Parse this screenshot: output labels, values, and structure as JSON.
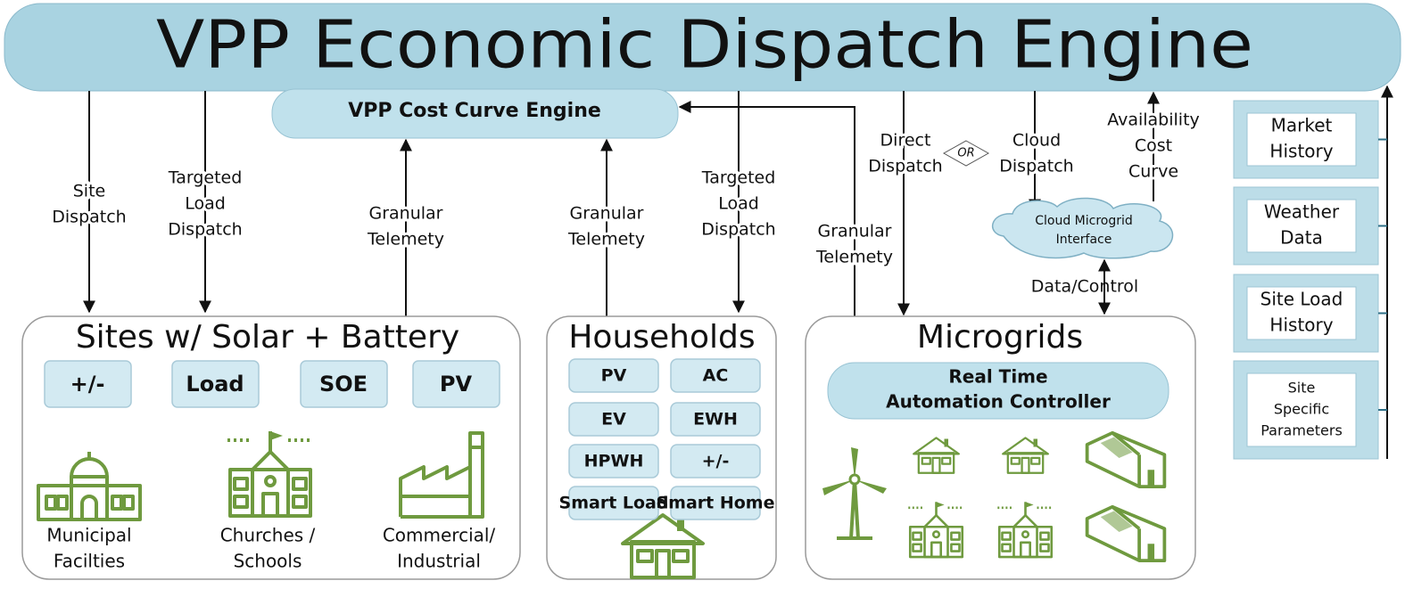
{
  "header": {
    "title": "VPP Economic Dispatch Engine"
  },
  "cost_curve_engine": {
    "label": "VPP Cost Curve Engine"
  },
  "flows": [
    [
      "Site",
      "Dispatch"
    ],
    [
      "Targeted",
      "Load",
      "Dispatch"
    ],
    [
      "Granular",
      "Telemety"
    ],
    [
      "Granular",
      "Telemety"
    ],
    [
      "Targeted",
      "Load",
      "Dispatch"
    ],
    [
      "Granular",
      "Telemety"
    ],
    [
      "Direct",
      "Dispatch"
    ],
    [
      "Cloud",
      "Dispatch"
    ],
    [
      "Availability",
      "Cost",
      "Curve"
    ]
  ],
  "or_label": "OR",
  "cloud": {
    "label": [
      "Cloud Microgrid",
      "Interface"
    ]
  },
  "data_control": "Data/Control",
  "groups": [
    {
      "title": "Sites w/ Solar + Battery",
      "tiles": [
        "+/-",
        "Load",
        "SOE",
        "PV"
      ],
      "sites": [
        [
          "Municipal",
          "Facilties"
        ],
        [
          "Churches /",
          "Schools"
        ],
        [
          "Commercial/",
          "Industrial"
        ]
      ]
    },
    {
      "title": "Households",
      "tiles": [
        "PV",
        "AC",
        "EV",
        "EWH",
        "HPWH",
        "+/-",
        "Smart Load",
        "Smart Home"
      ]
    },
    {
      "title": "Microgrids",
      "controller": [
        "Real Time",
        "Automation Controller"
      ]
    }
  ],
  "inputs": [
    [
      "Market",
      "History"
    ],
    [
      "Weather",
      "Data"
    ],
    [
      "Site Load",
      "History"
    ],
    [
      "Site",
      "Specific",
      "Parameters"
    ]
  ]
}
